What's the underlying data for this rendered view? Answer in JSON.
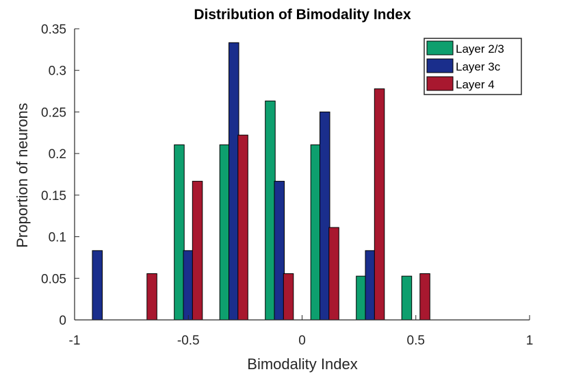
{
  "chart_data": {
    "type": "bar",
    "title": "Distribution of Bimodality Index",
    "xlabel": "Bimodality Index",
    "ylabel": "Proportion of neurons",
    "xlim": [
      -1,
      1
    ],
    "ylim": [
      0,
      0.35
    ],
    "xticks": [
      -1,
      -0.5,
      0,
      0.5,
      1
    ],
    "xtick_labels": [
      "-1",
      "-0.5",
      "0",
      "0.5",
      "1"
    ],
    "yticks": [
      0,
      0.05,
      0.1,
      0.15,
      0.2,
      0.25,
      0.3,
      0.35
    ],
    "ytick_labels": [
      "0",
      "0.05",
      "0.1",
      "0.15",
      "0.2",
      "0.25",
      "0.3",
      "0.35"
    ],
    "categories": [
      -0.9,
      -0.7,
      -0.5,
      -0.3,
      -0.1,
      0.1,
      0.3,
      0.5
    ],
    "legend_position": "top-right",
    "grid": false,
    "series": [
      {
        "name": "Layer 2/3",
        "color": "#0e9f6e",
        "values": [
          0,
          0,
          0.2105,
          0.2105,
          0.2632,
          0.2105,
          0.0526,
          0.0526
        ]
      },
      {
        "name": "Layer 3c",
        "color": "#1a2e8c",
        "values": [
          0.0833,
          0,
          0.0833,
          0.3333,
          0.1667,
          0.25,
          0.0833,
          0
        ]
      },
      {
        "name": "Layer 4",
        "color": "#a8182f",
        "values": [
          0,
          0.0556,
          0.1667,
          0.2222,
          0.0556,
          0.1111,
          0.2778,
          0.0556
        ]
      }
    ]
  }
}
